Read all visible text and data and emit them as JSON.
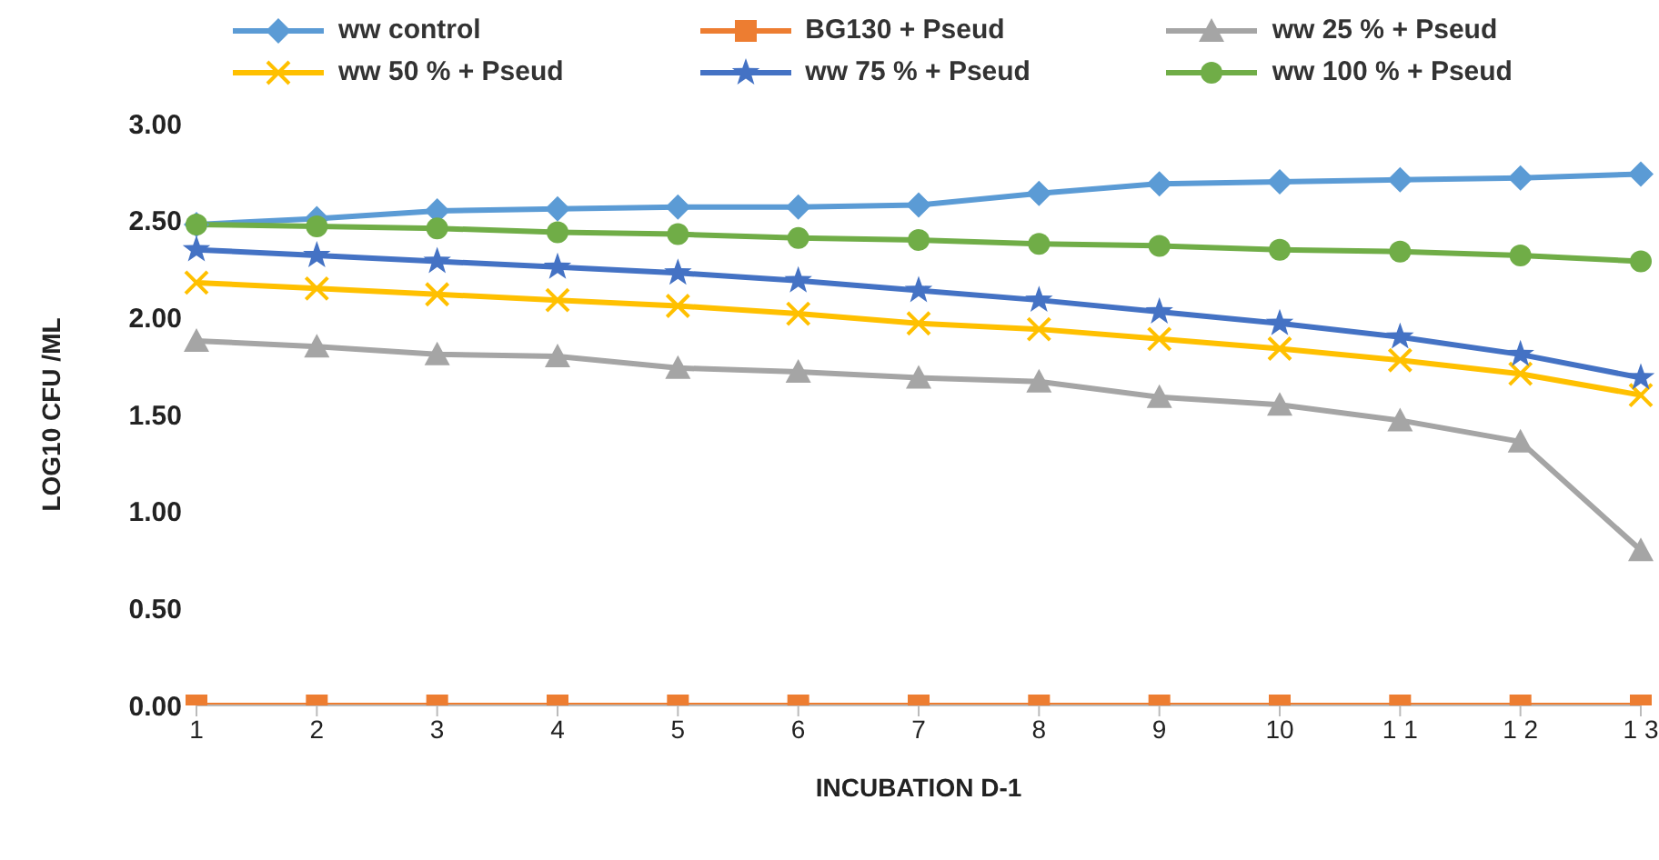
{
  "chart_data": {
    "type": "line",
    "xlabel": "INCUBATION D-1",
    "ylabel": "LOG10 CFU /ML",
    "categories": [
      "1",
      "2",
      "3",
      "4",
      "5",
      "6",
      "7",
      "8",
      "9",
      "10",
      "1 1",
      "1 2",
      "1 3"
    ],
    "series": [
      {
        "name": "ww control",
        "color": "#5b9bd5",
        "marker": "diamond",
        "values": [
          2.48,
          2.51,
          2.55,
          2.56,
          2.57,
          2.57,
          2.58,
          2.64,
          2.69,
          2.7,
          2.71,
          2.72,
          2.74
        ]
      },
      {
        "name": "BG130 + Pseud",
        "color": "#ed7d31",
        "marker": "square",
        "values": [
          0,
          0,
          0,
          0,
          0,
          0,
          0,
          0,
          0,
          0,
          0,
          0,
          0
        ]
      },
      {
        "name": "ww 25 %  + Pseud",
        "color": "#a5a5a5",
        "marker": "triangle",
        "values": [
          1.88,
          1.85,
          1.81,
          1.8,
          1.74,
          1.72,
          1.69,
          1.67,
          1.59,
          1.55,
          1.47,
          1.36,
          0.8
        ]
      },
      {
        "name": "ww 50 %  + Pseud",
        "color": "#ffc000",
        "marker": "cross",
        "values": [
          2.18,
          2.15,
          2.12,
          2.09,
          2.06,
          2.02,
          1.97,
          1.94,
          1.89,
          1.84,
          1.78,
          1.71,
          1.6
        ]
      },
      {
        "name": "ww 75 %  + Pseud",
        "color": "#4472c4",
        "marker": "star",
        "values": [
          2.35,
          2.32,
          2.29,
          2.26,
          2.23,
          2.19,
          2.14,
          2.09,
          2.03,
          1.97,
          1.9,
          1.81,
          1.69
        ]
      },
      {
        "name": "ww 100 % + Pseud",
        "color": "#70ad47",
        "marker": "circle",
        "values": [
          2.48,
          2.47,
          2.46,
          2.44,
          2.43,
          2.41,
          2.4,
          2.38,
          2.37,
          2.35,
          2.34,
          2.32,
          2.29
        ]
      }
    ],
    "ylim": [
      0,
      3
    ],
    "yticks": [
      {
        "value": 0,
        "label": "0.00"
      },
      {
        "value": 0.5,
        "label": "0.50"
      },
      {
        "value": 1,
        "label": "1.00"
      },
      {
        "value": 1.5,
        "label": "1.50"
      },
      {
        "value": 2,
        "label": "2.00"
      },
      {
        "value": 2.5,
        "label": "2.50"
      },
      {
        "value": 3,
        "label": "3.00"
      }
    ],
    "legend": "top",
    "grid": false
  }
}
